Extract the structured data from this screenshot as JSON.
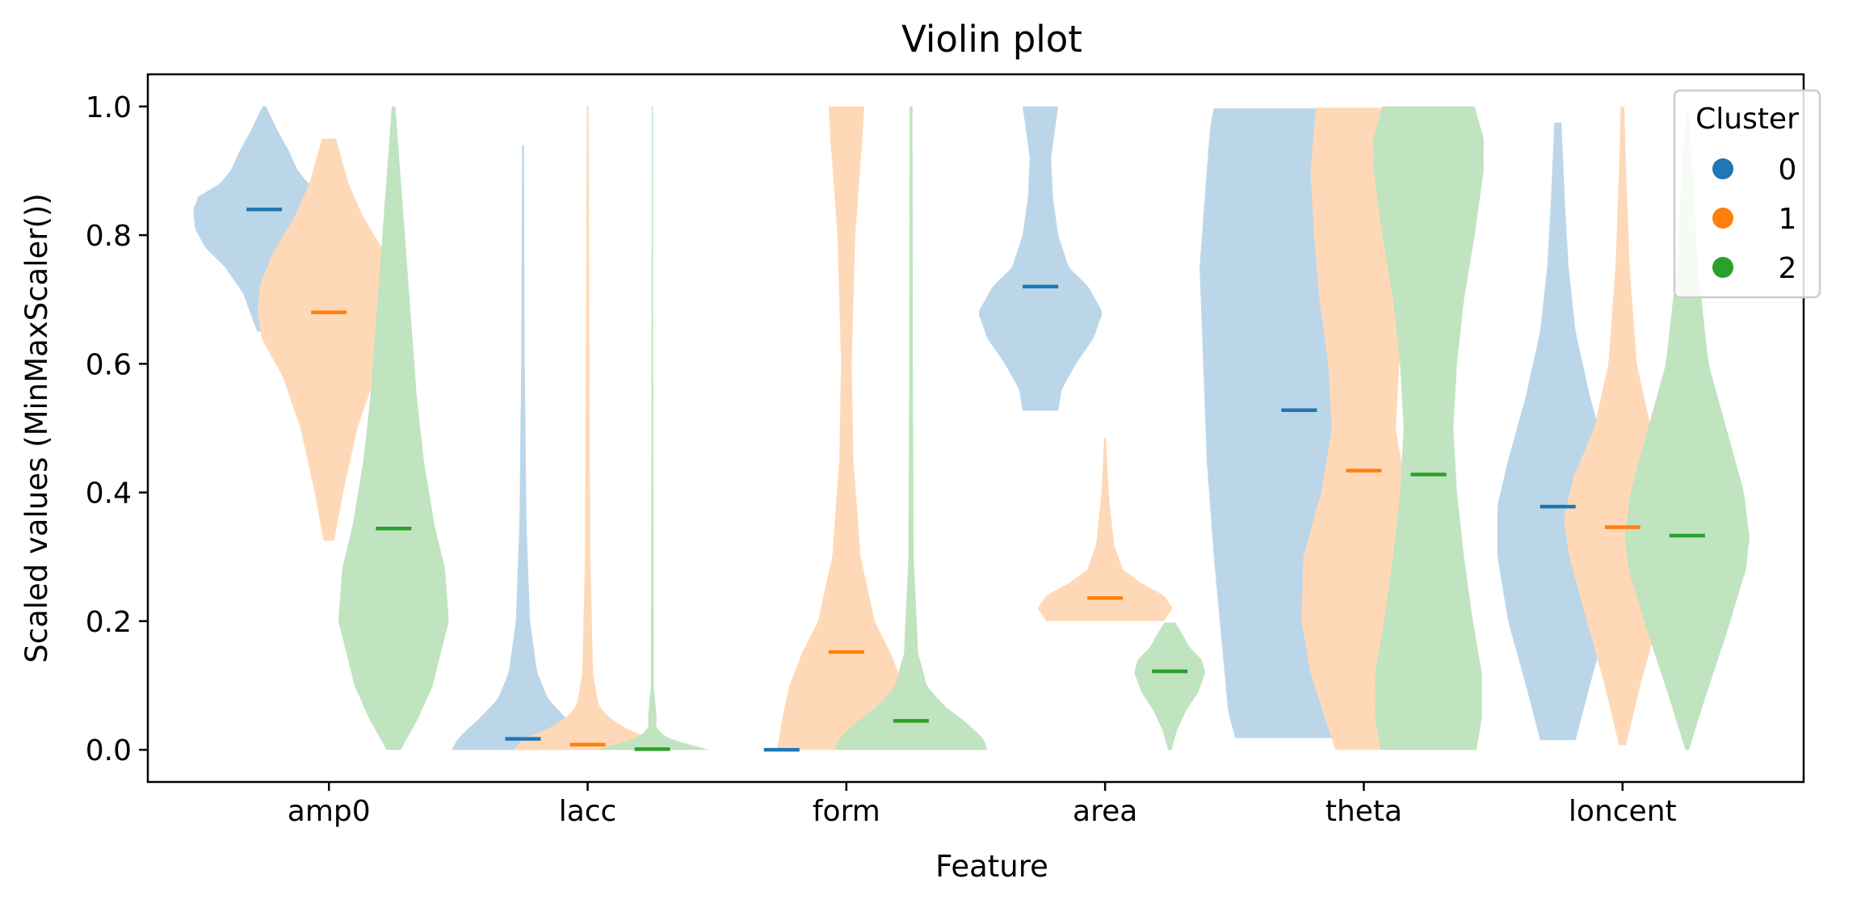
{
  "chart_data": {
    "type": "violin",
    "title": "Violin plot",
    "xlabel": "Feature",
    "ylabel": "Scaled values (MinMaxScaler())",
    "ylim": [
      -0.05,
      1.05
    ],
    "yticks": [
      0.0,
      0.2,
      0.4,
      0.6,
      0.8,
      1.0
    ],
    "ytick_labels": [
      "0.0",
      "0.2",
      "0.4",
      "0.6",
      "0.8",
      "1.0"
    ],
    "categories": [
      "amp0",
      "lacc",
      "form",
      "area",
      "theta",
      "loncent"
    ],
    "legend": {
      "title": "Cluster",
      "placement": "top-right"
    },
    "series": [
      {
        "name": "0",
        "color": "#1f77b4",
        "groups": [
          {
            "min": 0.65,
            "max": 1.0,
            "median": 0.84,
            "profile": [
              [
                0.65,
                0.004
              ],
              [
                0.68,
                0.008
              ],
              [
                0.71,
                0.012
              ],
              [
                0.75,
                0.022
              ],
              [
                0.78,
                0.033
              ],
              [
                0.81,
                0.039
              ],
              [
                0.84,
                0.04
              ],
              [
                0.86,
                0.037
              ],
              [
                0.88,
                0.025
              ],
              [
                0.9,
                0.019
              ],
              [
                0.93,
                0.014
              ],
              [
                0.96,
                0.008
              ],
              [
                1.0,
                0.001
              ]
            ]
          },
          {
            "min": 0.0,
            "max": 0.94,
            "median": 0.017,
            "profile": [
              [
                0.0,
                0.04
              ],
              [
                0.02,
                0.036
              ],
              [
                0.05,
                0.024
              ],
              [
                0.08,
                0.014
              ],
              [
                0.12,
                0.008
              ],
              [
                0.2,
                0.004
              ],
              [
                0.35,
                0.002
              ],
              [
                0.6,
                0.001
              ],
              [
                0.94,
                0.0005
              ]
            ]
          },
          {
            "min": 0.0,
            "max": 0.0,
            "median": 0.0,
            "profile": [
              [
                0.0,
                0.0
              ]
            ]
          },
          {
            "min": 0.527,
            "max": 1.0,
            "median": 0.72,
            "profile": [
              [
                0.527,
                0.01
              ],
              [
                0.56,
                0.012
              ],
              [
                0.6,
                0.02
              ],
              [
                0.64,
                0.03
              ],
              [
                0.68,
                0.035
              ],
              [
                0.72,
                0.027
              ],
              [
                0.75,
                0.016
              ],
              [
                0.8,
                0.01
              ],
              [
                0.86,
                0.007
              ],
              [
                0.92,
                0.006
              ],
              [
                0.96,
                0.008
              ],
              [
                1.0,
                0.01
              ]
            ]
          },
          {
            "min": 0.018,
            "max": 0.997,
            "median": 0.528,
            "profile": [
              [
                0.018,
                0.036
              ],
              [
                0.06,
                0.04
              ],
              [
                0.15,
                0.043
              ],
              [
                0.3,
                0.048
              ],
              [
                0.45,
                0.052
              ],
              [
                0.6,
                0.054
              ],
              [
                0.75,
                0.056
              ],
              [
                0.9,
                0.052
              ],
              [
                0.97,
                0.05
              ],
              [
                0.997,
                0.048
              ]
            ]
          },
          {
            "min": 0.015,
            "max": 0.975,
            "median": 0.378,
            "profile": [
              [
                0.015,
                0.01
              ],
              [
                0.1,
                0.018
              ],
              [
                0.2,
                0.028
              ],
              [
                0.3,
                0.034
              ],
              [
                0.38,
                0.034
              ],
              [
                0.45,
                0.028
              ],
              [
                0.55,
                0.018
              ],
              [
                0.65,
                0.01
              ],
              [
                0.75,
                0.006
              ],
              [
                0.85,
                0.004
              ],
              [
                0.975,
                0.002
              ]
            ]
          }
        ]
      },
      {
        "name": "1",
        "color": "#ff7f0e",
        "groups": [
          {
            "min": 0.325,
            "max": 0.95,
            "median": 0.68,
            "profile": [
              [
                0.325,
                0.003
              ],
              [
                0.4,
                0.008
              ],
              [
                0.5,
                0.016
              ],
              [
                0.58,
                0.026
              ],
              [
                0.64,
                0.038
              ],
              [
                0.68,
                0.04
              ],
              [
                0.72,
                0.039
              ],
              [
                0.77,
                0.032
              ],
              [
                0.83,
                0.019
              ],
              [
                0.88,
                0.011
              ],
              [
                0.92,
                0.007
              ],
              [
                0.95,
                0.004
              ]
            ]
          },
          {
            "min": 0.0,
            "max": 1.0,
            "median": 0.008,
            "profile": [
              [
                0.0,
                0.042
              ],
              [
                0.02,
                0.034
              ],
              [
                0.04,
                0.016
              ],
              [
                0.07,
                0.006
              ],
              [
                0.12,
                0.003
              ],
              [
                0.3,
                0.0015
              ],
              [
                0.6,
                0.001
              ],
              [
                1.0,
                0.0005
              ]
            ]
          },
          {
            "min": 0.0,
            "max": 1.0,
            "median": 0.152,
            "profile": [
              [
                0.0,
                0.039
              ],
              [
                0.05,
                0.036
              ],
              [
                0.1,
                0.032
              ],
              [
                0.15,
                0.025
              ],
              [
                0.2,
                0.016
              ],
              [
                0.3,
                0.008
              ],
              [
                0.45,
                0.004
              ],
              [
                0.6,
                0.003
              ],
              [
                0.8,
                0.005
              ],
              [
                0.95,
                0.009
              ],
              [
                1.0,
                0.01
              ]
            ]
          },
          {
            "min": 0.2,
            "max": 0.485,
            "median": 0.236,
            "profile": [
              [
                0.2,
                0.033
              ],
              [
                0.22,
                0.038
              ],
              [
                0.24,
                0.033
              ],
              [
                0.26,
                0.02
              ],
              [
                0.28,
                0.01
              ],
              [
                0.32,
                0.005
              ],
              [
                0.4,
                0.002
              ],
              [
                0.485,
                0.0005
              ]
            ]
          },
          {
            "min": 0.0,
            "max": 0.998,
            "median": 0.434,
            "profile": [
              [
                0.0,
                0.016
              ],
              [
                0.05,
                0.022
              ],
              [
                0.12,
                0.03
              ],
              [
                0.2,
                0.035
              ],
              [
                0.3,
                0.034
              ],
              [
                0.4,
                0.024
              ],
              [
                0.5,
                0.018
              ],
              [
                0.6,
                0.02
              ],
              [
                0.7,
                0.025
              ],
              [
                0.8,
                0.028
              ],
              [
                0.9,
                0.03
              ],
              [
                0.998,
                0.027
              ]
            ]
          },
          {
            "min": 0.007,
            "max": 1.0,
            "median": 0.346,
            "profile": [
              [
                0.007,
                0.002
              ],
              [
                0.1,
                0.01
              ],
              [
                0.2,
                0.02
              ],
              [
                0.3,
                0.03
              ],
              [
                0.36,
                0.033
              ],
              [
                0.42,
                0.028
              ],
              [
                0.5,
                0.016
              ],
              [
                0.6,
                0.008
              ],
              [
                0.75,
                0.004
              ],
              [
                0.9,
                0.002
              ],
              [
                1.0,
                0.001
              ]
            ]
          }
        ]
      },
      {
        "name": "2",
        "color": "#2ca02c",
        "groups": [
          {
            "min": 0.0,
            "max": 1.0,
            "median": 0.344,
            "profile": [
              [
                0.0,
                0.004
              ],
              [
                0.05,
                0.014
              ],
              [
                0.1,
                0.022
              ],
              [
                0.2,
                0.031
              ],
              [
                0.28,
                0.029
              ],
              [
                0.35,
                0.023
              ],
              [
                0.45,
                0.017
              ],
              [
                0.55,
                0.013
              ],
              [
                0.7,
                0.009
              ],
              [
                0.85,
                0.005
              ],
              [
                1.0,
                0.001
              ]
            ]
          },
          {
            "min": 0.0,
            "max": 1.0,
            "median": 0.001,
            "profile": [
              [
                0.0,
                0.032
              ],
              [
                0.01,
                0.015
              ],
              [
                0.03,
                0.003
              ],
              [
                0.1,
                0.0008
              ],
              [
                0.5,
                0.0005
              ],
              [
                1.0,
                0.0003
              ]
            ]
          },
          {
            "min": 0.0,
            "max": 1.0,
            "median": 0.045,
            "profile": [
              [
                0.0,
                0.043
              ],
              [
                0.02,
                0.04
              ],
              [
                0.045,
                0.03
              ],
              [
                0.07,
                0.018
              ],
              [
                0.1,
                0.009
              ],
              [
                0.15,
                0.004
              ],
              [
                0.3,
                0.0015
              ],
              [
                0.6,
                0.001
              ],
              [
                1.0,
                0.0008
              ]
            ]
          },
          {
            "min": 0.0,
            "max": 0.198,
            "median": 0.122,
            "profile": [
              [
                0.0,
                0.001
              ],
              [
                0.03,
                0.004
              ],
              [
                0.06,
                0.009
              ],
              [
                0.09,
                0.016
              ],
              [
                0.12,
                0.02
              ],
              [
                0.14,
                0.018
              ],
              [
                0.16,
                0.011
              ],
              [
                0.18,
                0.007
              ],
              [
                0.198,
                0.003
              ]
            ]
          },
          {
            "min": 0.0,
            "max": 1.0,
            "median": 0.428,
            "profile": [
              [
                0.0,
                0.027
              ],
              [
                0.05,
                0.03
              ],
              [
                0.12,
                0.03
              ],
              [
                0.2,
                0.025
              ],
              [
                0.3,
                0.02
              ],
              [
                0.4,
                0.016
              ],
              [
                0.5,
                0.014
              ],
              [
                0.6,
                0.016
              ],
              [
                0.7,
                0.02
              ],
              [
                0.8,
                0.026
              ],
              [
                0.9,
                0.031
              ],
              [
                0.95,
                0.031
              ],
              [
                1.0,
                0.026
              ]
            ]
          },
          {
            "min": 0.0,
            "max": 0.99,
            "median": 0.333,
            "profile": [
              [
                0.0,
                0.001
              ],
              [
                0.08,
                0.01
              ],
              [
                0.18,
                0.022
              ],
              [
                0.28,
                0.033
              ],
              [
                0.33,
                0.035
              ],
              [
                0.4,
                0.032
              ],
              [
                0.5,
                0.022
              ],
              [
                0.6,
                0.012
              ],
              [
                0.75,
                0.006
              ],
              [
                0.9,
                0.003
              ],
              [
                0.99,
                0.001
              ]
            ]
          }
        ]
      }
    ]
  }
}
